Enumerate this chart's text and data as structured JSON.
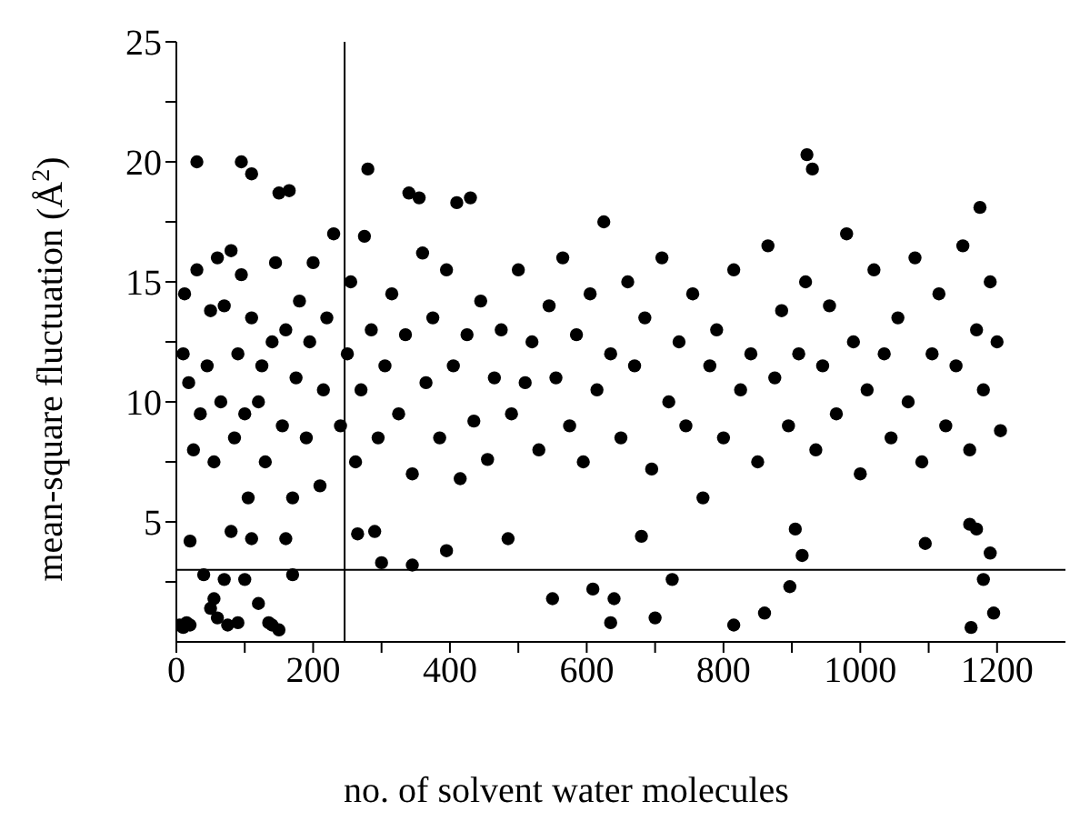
{
  "chart_data": {
    "type": "scatter",
    "xlabel": "no. of solvent water molecules",
    "ylabel": "mean-square fluctuation (Å$^{2}$)",
    "xlim": [
      0,
      1300
    ],
    "xticks": [
      0,
      {
        "value": 100,
        "label": null
      },
      200,
      {
        "value": 300,
        "label": null
      },
      400,
      {
        "value": 500,
        "label": null
      },
      600,
      {
        "value": 700,
        "label": null
      },
      800,
      {
        "value": 900,
        "label": null
      },
      1000,
      {
        "value": 1100,
        "label": null
      },
      1200
    ],
    "ylim": [
      0,
      25
    ],
    "yticks": [
      {
        "value": 2.5,
        "label": null
      },
      5,
      {
        "value": 7.5,
        "label": null
      },
      10,
      {
        "value": 12.5,
        "label": null
      },
      15,
      {
        "value": 17.5,
        "label": null
      },
      20,
      {
        "value": 22.5,
        "label": null
      },
      25
    ],
    "marker": "circle",
    "ref_lines": [
      {
        "axis": "x",
        "value": 246,
        "color": "#000000"
      },
      {
        "axis": "y",
        "value": 3,
        "color": "#000000"
      }
    ],
    "series": [
      {
        "color": "#000000",
        "x": [
          5,
          10,
          15,
          20,
          40,
          50,
          55,
          60,
          70,
          75,
          90,
          100,
          120,
          135,
          140,
          150,
          170,
          550,
          609,
          640,
          635,
          700,
          725,
          815,
          860,
          897,
          1162,
          1180,
          1195,
          20,
          80,
          110,
          160,
          265,
          290,
          300,
          345,
          395,
          485,
          680,
          905,
          915,
          1095,
          1190,
          1160,
          1170,
          30,
          95,
          110,
          150,
          165,
          280,
          340,
          355,
          410,
          430,
          922,
          930,
          1175,
          10,
          12,
          18,
          25,
          30,
          35,
          45,
          50,
          55,
          60,
          65,
          70,
          80,
          85,
          90,
          95,
          100,
          105,
          110,
          120,
          125,
          130,
          140,
          145,
          155,
          160,
          170,
          175,
          180,
          190,
          195,
          200,
          210,
          215,
          220,
          230,
          240,
          250,
          255,
          262,
          270,
          275,
          285,
          295,
          305,
          315,
          325,
          335,
          345,
          360,
          365,
          375,
          385,
          395,
          405,
          415,
          425,
          435,
          445,
          455,
          465,
          475,
          490,
          500,
          510,
          520,
          530,
          545,
          555,
          565,
          575,
          585,
          595,
          605,
          615,
          625,
          635,
          650,
          660,
          670,
          685,
          695,
          710,
          720,
          735,
          745,
          755,
          770,
          780,
          790,
          800,
          815,
          825,
          840,
          850,
          865,
          875,
          885,
          895,
          910,
          920,
          935,
          945,
          955,
          965,
          980,
          990,
          1000,
          1010,
          1020,
          1035,
          1045,
          1055,
          1070,
          1080,
          1090,
          1105,
          1115,
          1125,
          1140,
          1150,
          1160,
          1170,
          1180,
          1190,
          1200,
          1205
        ],
        "values": [
          0.7,
          0.6,
          0.8,
          0.7,
          2.8,
          1.4,
          1.8,
          1.0,
          2.6,
          0.7,
          0.8,
          2.6,
          1.6,
          0.8,
          0.7,
          0.5,
          2.8,
          1.8,
          2.2,
          1.8,
          0.8,
          1.0,
          2.6,
          0.7,
          1.2,
          2.3,
          0.6,
          2.6,
          1.2,
          4.2,
          4.6,
          4.3,
          4.3,
          4.5,
          4.6,
          3.3,
          3.2,
          3.8,
          4.3,
          4.4,
          4.7,
          3.6,
          4.1,
          3.7,
          4.9,
          4.7,
          20,
          20,
          19.5,
          18.7,
          18.8,
          19.7,
          18.7,
          18.5,
          18.3,
          18.5,
          20.3,
          19.7,
          18.1,
          12,
          14.5,
          10.8,
          8,
          15.5,
          9.5,
          11.5,
          13.8,
          7.5,
          16,
          10,
          14,
          16.3,
          8.5,
          12,
          15.3,
          9.5,
          6,
          13.5,
          10,
          11.5,
          7.5,
          12.5,
          15.8,
          9,
          13,
          6,
          11,
          14.2,
          8.5,
          12.5,
          15.8,
          6.5,
          10.5,
          13.5,
          17,
          9,
          12,
          15,
          7.5,
          10.5,
          16.9,
          13,
          8.5,
          11.5,
          14.5,
          9.5,
          12.8,
          7,
          16.2,
          10.8,
          13.5,
          8.5,
          15.5,
          11.5,
          6.8,
          12.8,
          9.2,
          14.2,
          7.6,
          11,
          13,
          9.5,
          15.5,
          10.8,
          12.5,
          8,
          14,
          11,
          16,
          9,
          12.8,
          7.5,
          14.5,
          10.5,
          17.5,
          12,
          8.5,
          15,
          11.5,
          13.5,
          7.2,
          16,
          10,
          12.5,
          9,
          14.5,
          6,
          11.5,
          13,
          8.5,
          15.5,
          10.5,
          12,
          7.5,
          16.5,
          11,
          13.8,
          9,
          12,
          15,
          8,
          11.5,
          14,
          9.5,
          17,
          12.5,
          7,
          10.5,
          15.5,
          12,
          8.5,
          13.5,
          10,
          16,
          7.5,
          12,
          14.5,
          9,
          11.5,
          16.5,
          8,
          13,
          10.5,
          15,
          12.5,
          8.8
        ]
      }
    ]
  }
}
